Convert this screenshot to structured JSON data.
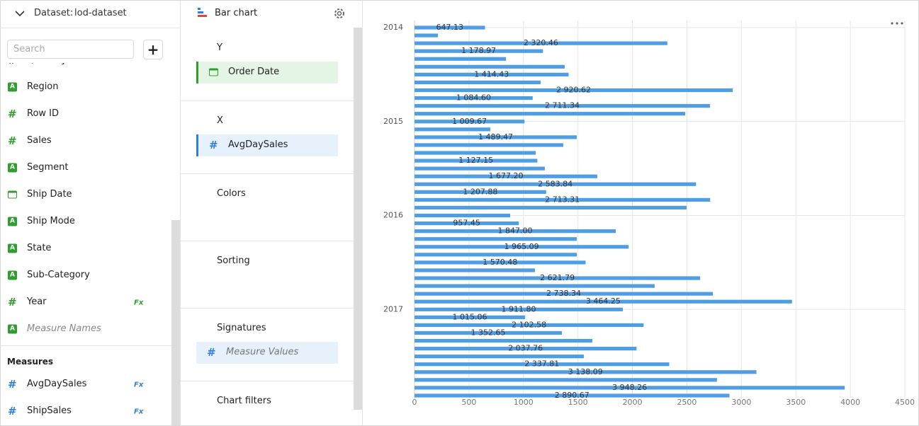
{
  "dataset_panel": {
    "label": "Dataset:",
    "name": "lod-dataset",
    "search_placeholder": "Search",
    "add_button": "+",
    "dimensions": [
      {
        "type": "number",
        "icon": "#",
        "name": "Quantity"
      },
      {
        "type": "string",
        "icon": "A",
        "name": "Region"
      },
      {
        "type": "number",
        "icon": "#",
        "name": "Row ID"
      },
      {
        "type": "number",
        "icon": "#",
        "name": "Sales"
      },
      {
        "type": "string",
        "icon": "A",
        "name": "Segment"
      },
      {
        "type": "date",
        "icon": null,
        "name": "Ship Date"
      },
      {
        "type": "string",
        "icon": "A",
        "name": "Ship Mode"
      },
      {
        "type": "string",
        "icon": "A",
        "name": "State"
      },
      {
        "type": "string",
        "icon": "A",
        "name": "Sub-Category"
      },
      {
        "type": "number",
        "icon": "#",
        "name": "Year",
        "formula": "Fx"
      },
      {
        "type": "string",
        "icon": "A",
        "name": "Measure Names",
        "italic": true
      }
    ],
    "measures_title": "Measures",
    "measures": [
      {
        "type": "number",
        "icon": "#",
        "name": "AvgDaySales",
        "formula": "Fx"
      },
      {
        "type": "number",
        "icon": "#",
        "name": "ShipSales",
        "formula": "Fx"
      }
    ]
  },
  "wizard_panel": {
    "chart_type": "Bar chart",
    "sections": [
      {
        "title": "Y",
        "items": [
          {
            "type": "date",
            "icon": null,
            "name": "Order Date",
            "color": "green"
          }
        ]
      },
      {
        "title": "X",
        "items": [
          {
            "type": "number",
            "icon": "#",
            "name": "AvgDaySales",
            "color": "blue"
          }
        ]
      },
      {
        "title": "Colors"
      },
      {
        "title": "Sorting"
      },
      {
        "title": "Signatures",
        "items": [
          {
            "type": "number",
            "icon": "#",
            "name": "Measure Values",
            "italic": true,
            "color": "plain"
          }
        ]
      },
      {
        "title": "Chart filters"
      }
    ]
  },
  "chart_data": {
    "type": "bar",
    "horizontal": true,
    "color": "#4f9de3",
    "grid": true,
    "categories": [
      "2014",
      null,
      null,
      null,
      null,
      null,
      null,
      null,
      null,
      null,
      null,
      null,
      "2015",
      null,
      null,
      null,
      null,
      null,
      null,
      null,
      null,
      null,
      null,
      null,
      "2016",
      null,
      null,
      null,
      null,
      null,
      null,
      null,
      null,
      null,
      null,
      null,
      "2017",
      null,
      null,
      null,
      null,
      null,
      null,
      null,
      null,
      null,
      null,
      null
    ],
    "values": [
      647.13,
      215,
      2320.46,
      1178.97,
      839,
      1378,
      1414.43,
      1157,
      2920.62,
      1084.6,
      2711.34,
      2484,
      1009.67,
      696,
      1489.47,
      1365,
      1112,
      1127.15,
      1196,
      1677.2,
      2583.84,
      1207.88,
      2713.31,
      2497,
      878,
      957.45,
      1847.0,
      1489,
      1965.09,
      1489,
      1570.48,
      1105,
      2621.79,
      2204,
      2738.34,
      3464.25,
      1911.8,
      1015.06,
      2102.58,
      1352.65,
      1632,
      2037.76,
      1554,
      2337.81,
      3138.09,
      2776,
      3948.26,
      2890.67
    ],
    "value_labels": [
      "647.13",
      null,
      "2 320.46",
      "1 178.97",
      null,
      null,
      "1 414.43",
      null,
      "2 920.62",
      "1 084.60",
      "2 711.34",
      null,
      "1 009.67",
      null,
      "1 489.47",
      null,
      null,
      "1 127.15",
      null,
      "1 677.20",
      "2 583.84",
      "1 207.88",
      "2 713.31",
      null,
      null,
      "957.45",
      "1 847.00",
      null,
      "1 965.09",
      null,
      "1 570.48",
      null,
      "2 621.79",
      null,
      "2 738.34",
      "3 464.25",
      "1 911.80",
      "1 015.06",
      "2 102.58",
      "1 352.65",
      null,
      "2 037.76",
      null,
      "2 337.81",
      "3 138.09",
      null,
      "3 948.26",
      "2 890.67"
    ],
    "xlim": [
      0,
      4500
    ],
    "xticks": [
      0,
      500,
      1000,
      1500,
      2000,
      2500,
      3000,
      3500,
      4000,
      4500
    ]
  }
}
